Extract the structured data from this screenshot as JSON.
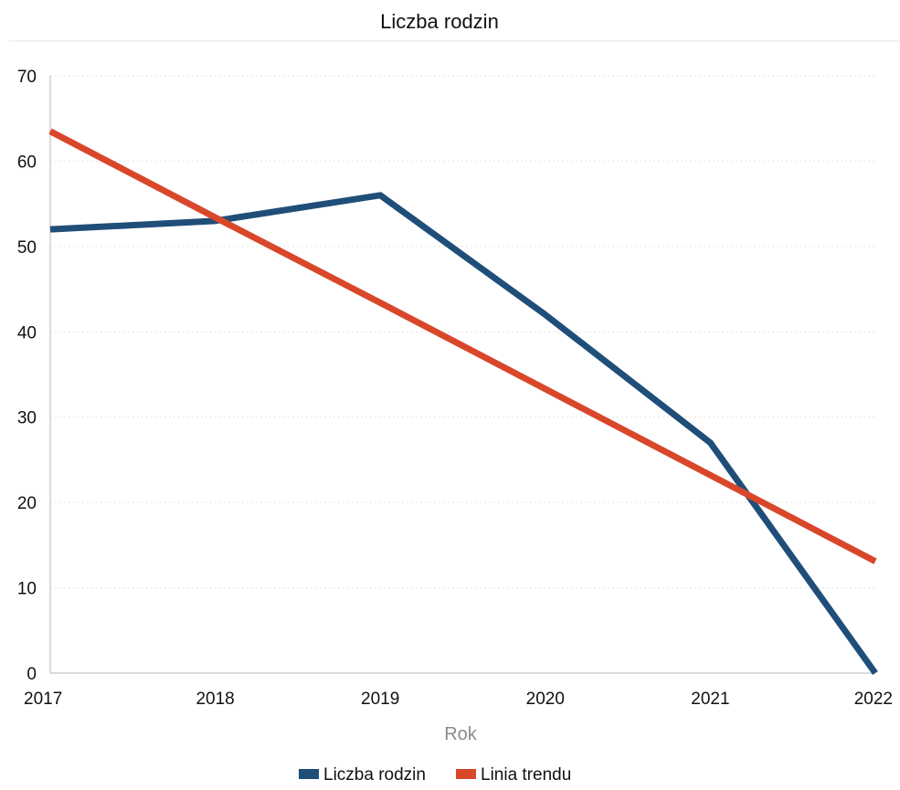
{
  "chart_data": {
    "type": "line",
    "title": "Liczba rodzin",
    "xlabel": "Rok",
    "ylabel": "",
    "categories": [
      "2017",
      "2018",
      "2019",
      "2020",
      "2021",
      "2022"
    ],
    "ylim": [
      0,
      70
    ],
    "yticks": [
      0,
      10,
      20,
      30,
      40,
      50,
      60,
      70
    ],
    "grid": true,
    "legend_position": "bottom-center",
    "series": [
      {
        "name": "Liczba rodzin",
        "color": "#1f4e79",
        "values": [
          52,
          53,
          56,
          42,
          27,
          0
        ]
      },
      {
        "name": "Linia trendu",
        "color": "#d9472b",
        "values": [
          63.5,
          53.4,
          43.4,
          33.3,
          23.2,
          13.1
        ]
      }
    ]
  }
}
